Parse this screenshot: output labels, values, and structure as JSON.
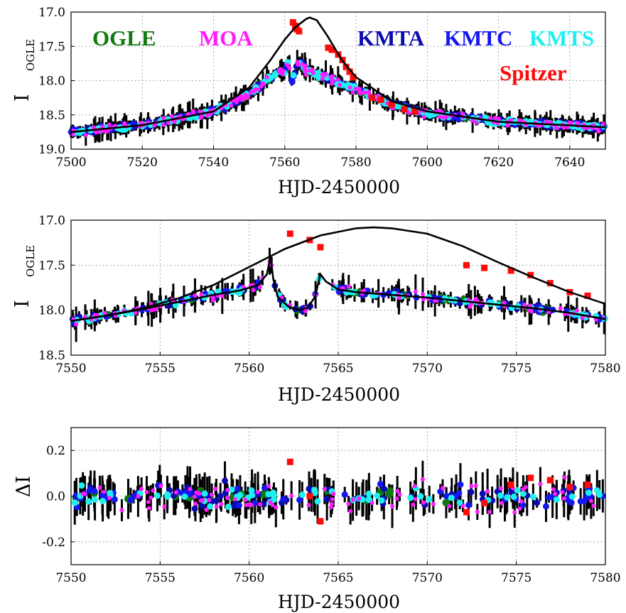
{
  "colors": {
    "OGLE": "#127812",
    "MOA": "#ff1cff",
    "KMTA": "#0a0ab0",
    "KMTC": "#1616f0",
    "KMTS": "#1ef0f0",
    "Spitzer": "#ff0a0a",
    "errorbar": "#000000",
    "model": "#000000",
    "grid": "#9a9a9a"
  },
  "chart_data": [
    {
      "type": "scatter",
      "ylabel": "I",
      "ylabel_sub": "OGLE",
      "xlabel": "HJD-2450000",
      "xlim": [
        7500,
        7650
      ],
      "ylim": [
        19.0,
        17.0
      ],
      "y_inverted": true,
      "x_ticks": [
        "7500",
        "7520",
        "7540",
        "7560",
        "7580",
        "7600",
        "7620",
        "7640"
      ],
      "y_ticks": [
        "17.0",
        "17.5",
        "18.0",
        "18.5",
        "19.0"
      ],
      "grid": true,
      "legend": [
        "OGLE",
        "MOA",
        "KMTA",
        "KMTC",
        "KMTS",
        "Spitzer"
      ],
      "series": [
        {
          "name": "Spitzer",
          "marker": "square",
          "values_x": [
            7562.3,
            7562.9,
            7563.4,
            7564.0,
            7572.2,
            7573.2,
            7575.0,
            7576.2,
            7577.2,
            7578.2,
            7579.2,
            7584.5,
            7587.0,
            7590.0,
            7593.5,
            7596.5
          ],
          "values_y": [
            17.15,
            17.2,
            17.25,
            17.28,
            17.52,
            17.55,
            17.62,
            17.7,
            17.8,
            17.87,
            17.95,
            18.25,
            18.28,
            18.35,
            18.42,
            18.45
          ]
        }
      ],
      "model": [
        {
          "x": 7500,
          "y": 18.75
        },
        {
          "x": 7520,
          "y": 18.65
        },
        {
          "x": 7540,
          "y": 18.45
        },
        {
          "x": 7550,
          "y": 18.1
        },
        {
          "x": 7556,
          "y": 17.7
        },
        {
          "x": 7560,
          "y": 17.4
        },
        {
          "x": 7563,
          "y": 17.22
        },
        {
          "x": 7566,
          "y": 17.1
        },
        {
          "x": 7567,
          "y": 17.08
        },
        {
          "x": 7569,
          "y": 17.12
        },
        {
          "x": 7572,
          "y": 17.35
        },
        {
          "x": 7576,
          "y": 17.7
        },
        {
          "x": 7580,
          "y": 17.95
        },
        {
          "x": 7590,
          "y": 18.3
        },
        {
          "x": 7600,
          "y": 18.45
        },
        {
          "x": 7620,
          "y": 18.6
        },
        {
          "x": 7650,
          "y": 18.68
        }
      ],
      "model2": [
        {
          "x": 7500,
          "y": 18.75
        },
        {
          "x": 7520,
          "y": 18.65
        },
        {
          "x": 7540,
          "y": 18.45
        },
        {
          "x": 7550,
          "y": 18.2
        },
        {
          "x": 7556,
          "y": 17.95
        },
        {
          "x": 7560,
          "y": 17.85
        },
        {
          "x": 7561,
          "y": 17.72
        },
        {
          "x": 7562,
          "y": 18.0
        },
        {
          "x": 7564,
          "y": 17.7
        },
        {
          "x": 7566,
          "y": 17.85
        },
        {
          "x": 7570,
          "y": 17.92
        },
        {
          "x": 7576,
          "y": 18.05
        },
        {
          "x": 7580,
          "y": 18.12
        },
        {
          "x": 7590,
          "y": 18.35
        },
        {
          "x": 7600,
          "y": 18.48
        },
        {
          "x": 7620,
          "y": 18.6
        },
        {
          "x": 7650,
          "y": 18.68
        }
      ]
    },
    {
      "type": "scatter",
      "ylabel": "I",
      "ylabel_sub": "OGLE",
      "xlabel": "HJD-2450000",
      "xlim": [
        7550,
        7580
      ],
      "ylim": [
        18.5,
        17.0
      ],
      "y_inverted": true,
      "x_ticks": [
        "7550",
        "7555",
        "7560",
        "7565",
        "7570",
        "7575",
        "7580"
      ],
      "y_ticks": [
        "17.0",
        "17.5",
        "18.0",
        "18.5"
      ],
      "grid": true,
      "series": [
        {
          "name": "Spitzer",
          "marker": "square",
          "values_x": [
            7562.3,
            7563.4,
            7564.0,
            7572.2,
            7573.2,
            7574.7,
            7575.8,
            7576.9,
            7578.0,
            7579.0
          ],
          "values_y": [
            17.15,
            17.22,
            17.3,
            17.5,
            17.53,
            17.56,
            17.61,
            17.7,
            17.8,
            17.84
          ]
        }
      ],
      "model_single": [
        {
          "x": 7550,
          "y": 18.12
        },
        {
          "x": 7552,
          "y": 18.06
        },
        {
          "x": 7554,
          "y": 17.98
        },
        {
          "x": 7556,
          "y": 17.87
        },
        {
          "x": 7558,
          "y": 17.72
        },
        {
          "x": 7560,
          "y": 17.52
        },
        {
          "x": 7562,
          "y": 17.32
        },
        {
          "x": 7564,
          "y": 17.17
        },
        {
          "x": 7566,
          "y": 17.09
        },
        {
          "x": 7567,
          "y": 17.08
        },
        {
          "x": 7568,
          "y": 17.09
        },
        {
          "x": 7570,
          "y": 17.15
        },
        {
          "x": 7572,
          "y": 17.29
        },
        {
          "x": 7574,
          "y": 17.47
        },
        {
          "x": 7576,
          "y": 17.64
        },
        {
          "x": 7578,
          "y": 17.8
        },
        {
          "x": 7580,
          "y": 17.93
        }
      ],
      "model_binary": [
        {
          "x": 7550,
          "y": 18.12
        },
        {
          "x": 7552,
          "y": 18.06
        },
        {
          "x": 7554,
          "y": 17.99
        },
        {
          "x": 7556,
          "y": 17.91
        },
        {
          "x": 7558,
          "y": 17.83
        },
        {
          "x": 7559.5,
          "y": 17.78
        },
        {
          "x": 7560.5,
          "y": 17.72
        },
        {
          "x": 7561.0,
          "y": 17.6
        },
        {
          "x": 7561.2,
          "y": 17.4
        },
        {
          "x": 7561.35,
          "y": 17.65
        },
        {
          "x": 7561.6,
          "y": 17.85
        },
        {
          "x": 7562.2,
          "y": 17.96
        },
        {
          "x": 7562.8,
          "y": 18.0
        },
        {
          "x": 7563.3,
          "y": 17.97
        },
        {
          "x": 7563.7,
          "y": 17.85
        },
        {
          "x": 7564.0,
          "y": 17.6
        },
        {
          "x": 7564.3,
          "y": 17.68
        },
        {
          "x": 7565,
          "y": 17.77
        },
        {
          "x": 7566,
          "y": 17.8
        },
        {
          "x": 7568,
          "y": 17.83
        },
        {
          "x": 7570,
          "y": 17.86
        },
        {
          "x": 7572,
          "y": 17.9
        },
        {
          "x": 7574,
          "y": 17.94
        },
        {
          "x": 7576,
          "y": 17.98
        },
        {
          "x": 7578,
          "y": 18.03
        },
        {
          "x": 7580,
          "y": 18.1
        }
      ]
    },
    {
      "type": "scatter",
      "ylabel": "ΔI",
      "xlabel": "HJD-2450000",
      "xlim": [
        7550,
        7580
      ],
      "ylim": [
        -0.3,
        0.3
      ],
      "x_ticks": [
        "7550",
        "7555",
        "7560",
        "7565",
        "7570",
        "7575",
        "7580"
      ],
      "y_ticks": [
        "0.2",
        "0.0",
        "-0.2"
      ],
      "grid": true,
      "series": [
        {
          "name": "Spitzer",
          "marker": "square",
          "values_x": [
            7562.3,
            7563.4,
            7564.0,
            7572.2,
            7573.2,
            7574.7,
            7575.8,
            7576.9,
            7578.0,
            7579.0
          ],
          "values_y": [
            0.15,
            0.0,
            -0.11,
            -0.07,
            -0.03,
            0.05,
            0.08,
            0.07,
            0.04,
            0.05
          ]
        }
      ]
    }
  ]
}
